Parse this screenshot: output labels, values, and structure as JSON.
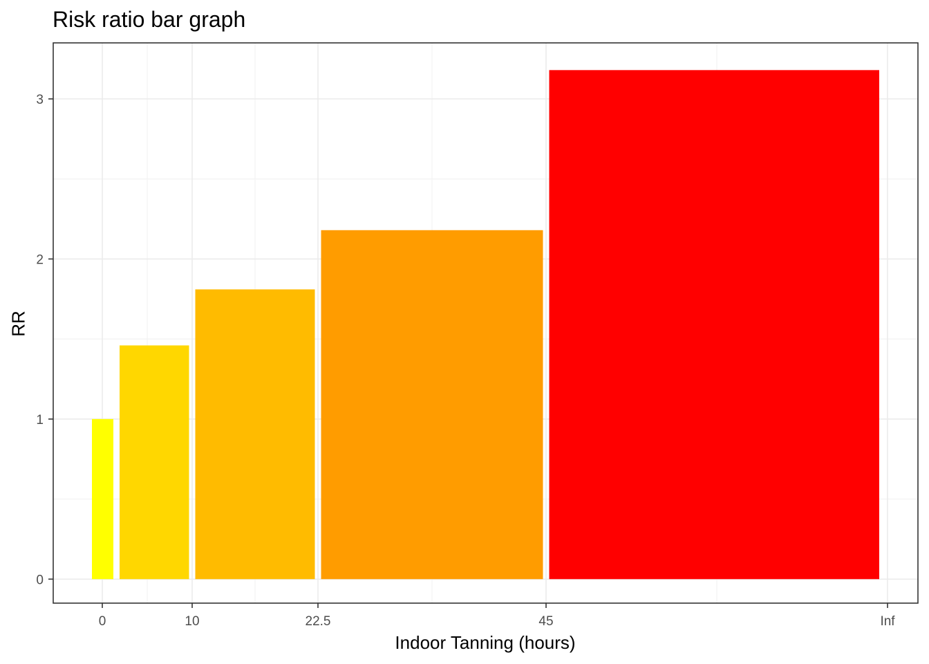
{
  "chart_data": {
    "type": "bar",
    "title": "Risk ratio bar graph",
    "xlabel": "Indoor Tanning (hours)",
    "ylabel": "RR",
    "x_tick_labels": [
      "0",
      "10",
      "22.5",
      "45",
      "Inf"
    ],
    "y_ticks": [
      0,
      1,
      2,
      3
    ],
    "ylim": [
      -0.15,
      3.35
    ],
    "grid": true,
    "bars": [
      {
        "from": "0",
        "to": "0",
        "value": 1.0,
        "color": "#FFFF00"
      },
      {
        "from": "0",
        "to": "10",
        "value": 1.46,
        "color": "#FFD700"
      },
      {
        "from": "10",
        "to": "22.5",
        "value": 1.81,
        "color": "#FFBB00"
      },
      {
        "from": "22.5",
        "to": "45",
        "value": 2.18,
        "color": "#FF9C00"
      },
      {
        "from": "45",
        "to": "Inf",
        "value": 3.18,
        "color": "#FF0000"
      }
    ]
  }
}
